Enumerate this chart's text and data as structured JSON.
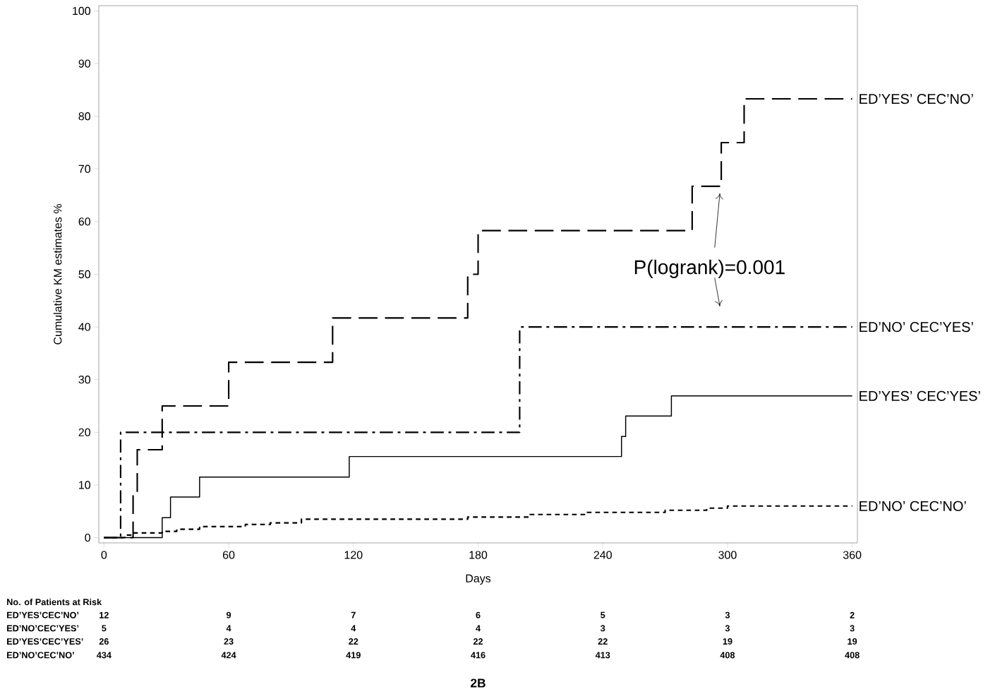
{
  "chart_data": {
    "type": "step",
    "xlabel": "Days",
    "ylabel": "Cumulative KM estimates %",
    "xlim": [
      -2.5,
      362.5
    ],
    "ylim": [
      -1,
      101
    ],
    "xticks": [
      0,
      60,
      120,
      180,
      240,
      300,
      360
    ],
    "yticks": [
      0,
      10,
      20,
      30,
      40,
      50,
      60,
      70,
      80,
      90,
      100
    ],
    "grid": false,
    "legend": false,
    "marker": "none",
    "series": [
      {
        "name": "ED’YES’ CEC’NO’",
        "color": "#000000",
        "line_style": "dashed",
        "x": [
          0,
          14,
          16,
          28,
          60,
          110,
          175,
          180,
          283,
          297,
          308,
          360
        ],
        "values": [
          0,
          8.3,
          16.7,
          25,
          33.3,
          41.7,
          50,
          58.3,
          66.7,
          75,
          83.3,
          83.3
        ]
      },
      {
        "name": "ED’NO’ CEC’YES’",
        "color": "#000000",
        "line_style": "dashdot",
        "x": [
          0,
          8,
          200,
          360
        ],
        "values": [
          0,
          20,
          40,
          40
        ]
      },
      {
        "name": "ED’YES’ CEC’YES’",
        "color": "#000000",
        "line_style": "solid",
        "x": [
          0,
          28,
          32,
          46,
          118,
          249,
          251,
          273,
          360
        ],
        "values": [
          0,
          3.8,
          7.7,
          11.5,
          15.4,
          19.2,
          23.1,
          26.9,
          26.9
        ]
      },
      {
        "name": "ED’NO’ CEC’NO’",
        "color": "#000000",
        "line_style": "dotted",
        "x": [
          0,
          10,
          14,
          28,
          35,
          46,
          68,
          80,
          95,
          175,
          205,
          232,
          270,
          290,
          300,
          360
        ],
        "values": [
          0,
          0.5,
          0.9,
          1.2,
          1.6,
          2.1,
          2.5,
          2.8,
          3.5,
          3.9,
          4.4,
          4.8,
          5.2,
          5.6,
          6.0,
          6.0
        ]
      }
    ],
    "annotations": [
      "P(logrank)=0.001",
      "No. of Patients at Risk",
      "ED’YES’CEC’NO’",
      "12",
      "9",
      "7",
      "6",
      "5",
      "3",
      "2",
      "ED’NO’CEC’YES’",
      "5",
      "4",
      "4",
      "4",
      "3",
      "3",
      "3",
      "ED’YES’CEC’YES’",
      "26",
      "23",
      "22",
      "22",
      "22",
      "19",
      "19",
      "ED’NO’CEC’NO’",
      "434",
      "424",
      "419",
      "416",
      "413",
      "408",
      "408",
      "2B"
    ]
  }
}
